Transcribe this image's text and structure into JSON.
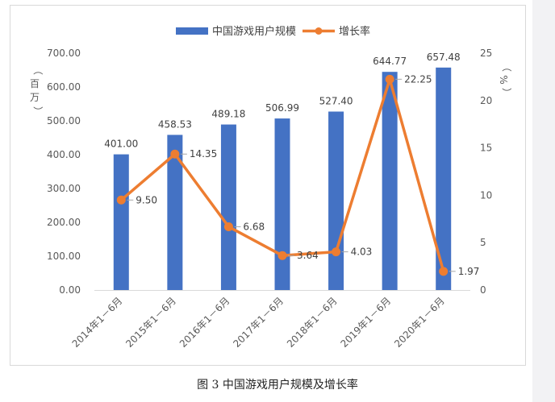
{
  "caption": "图 3 中国游戏用户规模及增长率",
  "colors": {
    "bar": "#4472C4",
    "line": "#ED7D31",
    "axis": "#d9d9d9",
    "text": "#595959"
  },
  "chart_data": {
    "type": "bar",
    "categories": [
      "2014年1－6月",
      "2015年1－6月",
      "2016年1－6月",
      "2017年1－6月",
      "2018年1－6月",
      "2019年1－6月",
      "2020年1－6月"
    ],
    "series": [
      {
        "name": "中国游戏用户规模",
        "type": "bar",
        "axis": "left",
        "values": [
          401.0,
          458.53,
          489.18,
          506.99,
          527.4,
          644.77,
          657.48
        ],
        "labels": [
          "401.00",
          "458.53",
          "489.18",
          "506.99",
          "527.40",
          "644.77",
          "657.48"
        ]
      },
      {
        "name": "增长率",
        "type": "line",
        "axis": "right",
        "values": [
          9.5,
          14.35,
          6.68,
          3.64,
          4.03,
          22.25,
          1.97
        ],
        "labels": [
          "9.50",
          "14.35",
          "6.68",
          "3.64",
          "4.03",
          "22.25",
          "1.97"
        ]
      }
    ],
    "y_left": {
      "label": "（百万）",
      "range": [
        0,
        700
      ],
      "ticks": [
        "0.00",
        "100.00",
        "200.00",
        "300.00",
        "400.00",
        "500.00",
        "600.00",
        "700.00"
      ]
    },
    "y_right": {
      "label": "（%）",
      "range": [
        0,
        25
      ],
      "ticks": [
        "0",
        "5",
        "10",
        "15",
        "20",
        "25"
      ]
    },
    "legend_position": "top",
    "grid": false
  }
}
